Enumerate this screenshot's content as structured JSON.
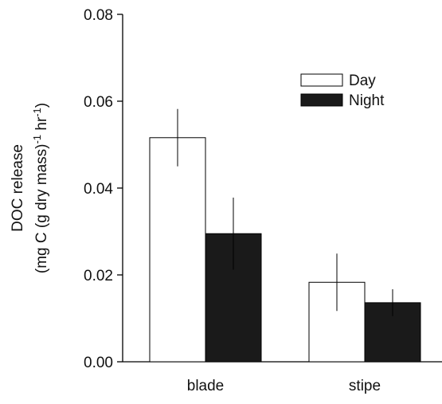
{
  "chart_data": {
    "type": "bar",
    "y_label": {
      "line1": "DOC release",
      "line2": [
        "(mg C (g dry mass)",
        "-1",
        " hr",
        "-1",
        ")"
      ]
    },
    "categories": [
      "blade",
      "stipe"
    ],
    "series": [
      {
        "name": "Day",
        "color": "#ffffff",
        "values": [
          0.0516,
          0.0183
        ],
        "errors": [
          0.0066,
          0.0066
        ]
      },
      {
        "name": "Night",
        "color": "#1a1a1a",
        "values": [
          0.0295,
          0.0136
        ],
        "errors": [
          0.0083,
          0.0031
        ]
      }
    ],
    "ylim": [
      0,
      0.08
    ],
    "yticks": [
      {
        "value": 0,
        "label": "0.00"
      },
      {
        "value": 0.02,
        "label": "0.02"
      },
      {
        "value": 0.04,
        "label": "0.04"
      },
      {
        "value": 0.06,
        "label": "0.06"
      },
      {
        "value": 0.08,
        "label": "0.08"
      }
    ],
    "legend": "upper right"
  }
}
